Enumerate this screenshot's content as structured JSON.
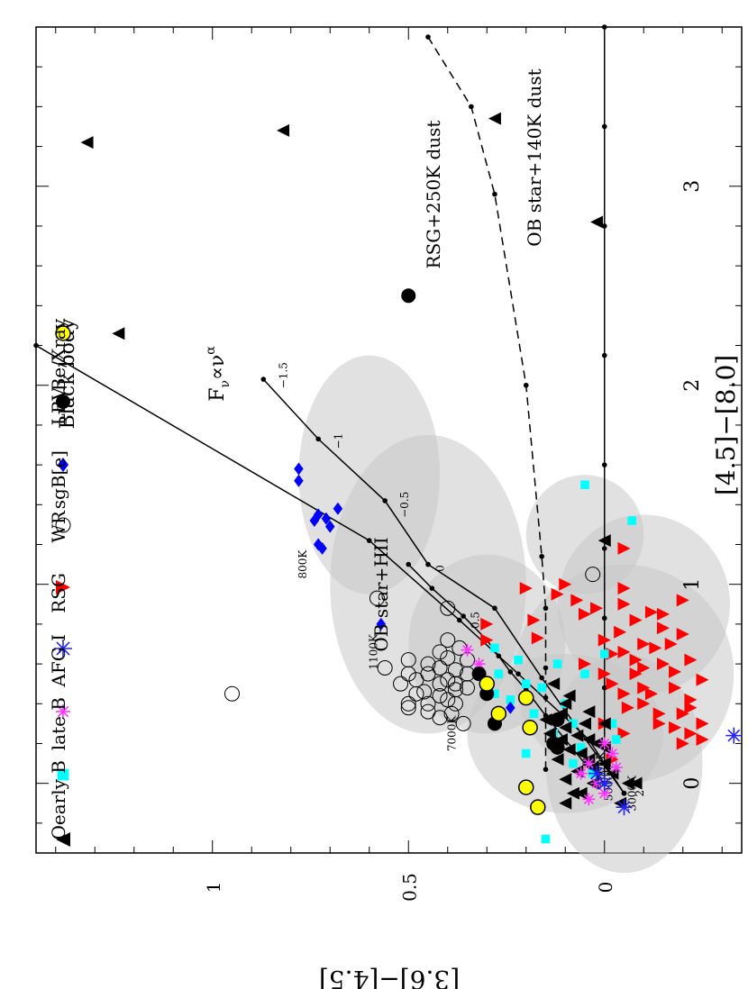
{
  "chart_data": {
    "type": "scatter",
    "orientation": "rotated-90-clockwise",
    "xlabel": "[4.5]−[8.0]",
    "ylabel": "[3.6]−[4.5]",
    "xlim": [
      -0.35,
      3.8
    ],
    "ylim": [
      -0.35,
      1.45
    ],
    "x_ticks": [
      "0",
      "1",
      "2",
      "3"
    ],
    "y_ticks": [
      "0",
      "0.5",
      "1"
    ],
    "grid": false,
    "legend_placement": "bottom-left",
    "colors": {
      "O": "#000000",
      "earlyB": "#00ffff",
      "lateB": "#ff33ff",
      "AFG": "#2222ff",
      "RSG": "#ff0000",
      "sgB": "#0000ff",
      "LBV": "#000000",
      "BeX": "#ffff00",
      "bg": "#c8c8c8"
    },
    "legend": [
      {
        "label": "O",
        "marker": "triangle-up",
        "color": "#000000"
      },
      {
        "label": "early B",
        "marker": "square",
        "color": "#00ffff"
      },
      {
        "label": "late B",
        "marker": "asterisk",
        "color": "#ff33ff"
      },
      {
        "label": "AFG I",
        "marker": "asterisk",
        "color": "#2222ff"
      },
      {
        "label": "RSG",
        "marker": "triangle-down",
        "color": "#ff0000"
      },
      {
        "label": "WR",
        "marker": "circle-open",
        "color": "#000000"
      },
      {
        "label": "sgB[e]",
        "marker": "diamond",
        "color": "#0000ff"
      },
      {
        "label": "LBV",
        "marker": "circle",
        "color": "#000000"
      },
      {
        "label": "Be/Xray",
        "marker": "circle-yellow",
        "color": "#ffff00"
      }
    ],
    "annotations": {
      "blackbody": "Black body",
      "powerlaw_main": "F",
      "powerlaw_sub": "ν",
      "powerlaw_rest": "∝ν",
      "powerlaw_sup": "α",
      "ob_hii": "OB star+HII",
      "rsg_dust": "RSG+250K dust",
      "ob_dust": "OB star+140K dust"
    },
    "lines": {
      "blackbody": {
        "x": [
          -0.05,
          0.22,
          0.55,
          0.82,
          1.22,
          2.2
        ],
        "y": [
          -0.05,
          0.04,
          0.22,
          0.37,
          0.6,
          1.45
        ],
        "labels": [
          {
            "text": "3000K",
            "x": -0.05,
            "y": -0.08
          },
          {
            "text": "5000K",
            "x": 0.0,
            "y": -0.02
          },
          {
            "text": "8000K",
            "x": 0.07,
            "y": 0.0
          },
          {
            "text": "7000K",
            "x": 0.25,
            "y": 0.38
          },
          {
            "text": "1100K",
            "x": 0.66,
            "y": 0.58
          },
          {
            "text": "800K",
            "x": 1.1,
            "y": 0.76
          }
        ]
      },
      "powerlaw": {
        "x": [
          -0.05,
          0.53,
          0.88,
          1.1,
          1.42,
          1.73,
          2.03
        ],
        "y": [
          -0.05,
          0.16,
          0.28,
          0.45,
          0.56,
          0.73,
          0.87
        ],
        "labels": [
          {
            "text": "2",
            "x": -0.05,
            "y": -0.1
          },
          {
            "text": "0.5",
            "x": 0.82,
            "y": 0.32
          },
          {
            "text": "0",
            "x": 1.08,
            "y": 0.41
          },
          {
            "text": "−0.5",
            "x": 1.4,
            "y": 0.5
          },
          {
            "text": "−1",
            "x": 1.72,
            "y": 0.67
          },
          {
            "text": "−1.5",
            "x": 2.05,
            "y": 0.81
          }
        ]
      },
      "ob_hii": {
        "x": [
          0.0,
          0.1,
          0.22,
          0.34,
          0.47,
          0.56,
          0.64,
          0.72,
          0.84,
          0.98,
          1.1
        ],
        "y": [
          0.0,
          0.05,
          0.1,
          0.15,
          0.2,
          0.24,
          0.27,
          0.3,
          0.36,
          0.44,
          0.5
        ]
      },
      "rsg_dust": {
        "x": [
          0.07,
          0.43,
          0.58,
          0.88,
          1.14,
          2.0,
          2.96,
          3.4,
          3.75
        ],
        "y": [
          0.15,
          0.15,
          0.15,
          0.15,
          0.16,
          0.2,
          0.28,
          0.34,
          0.45
        ]
      },
      "ob_dust": {
        "x": [
          0.0,
          0.2,
          0.48,
          0.83,
          1.18,
          1.6,
          2.15,
          2.8,
          3.3,
          3.8
        ],
        "y": [
          0.0,
          0.0,
          0.0,
          0.0,
          0.0,
          0.0,
          0.0,
          0.0,
          0.0,
          0.0
        ]
      }
    },
    "series": {
      "O": [
        [
          3.22,
          1.32
        ],
        [
          3.28,
          0.82
        ],
        [
          3.34,
          0.28
        ],
        [
          2.26,
          1.24
        ],
        [
          2.82,
          0.02
        ],
        [
          1.22,
          0.0
        ],
        [
          -0.05,
          0.08
        ],
        [
          0.0,
          0.03
        ],
        [
          0.1,
          0.0
        ],
        [
          0.2,
          0.02
        ],
        [
          0.3,
          0.05
        ],
        [
          0.35,
          0.11
        ],
        [
          0.25,
          0.14
        ],
        [
          0.22,
          0.11
        ],
        [
          0.15,
          0.06
        ],
        [
          0.08,
          0.03
        ],
        [
          0.05,
          -0.02
        ],
        [
          0.0,
          -0.06
        ],
        [
          -0.1,
          0.1
        ],
        [
          0.4,
          0.1
        ],
        [
          0.3,
          0.0
        ],
        [
          0.12,
          0.12
        ],
        [
          -0.05,
          0.06
        ],
        [
          0.02,
          0.1
        ],
        [
          0.06,
          0.07
        ],
        [
          0.18,
          0.0
        ],
        [
          0.24,
          0.07
        ],
        [
          0.32,
          0.15
        ],
        [
          0.44,
          0.09
        ],
        [
          0.5,
          0.13
        ],
        [
          0.17,
          0.09
        ],
        [
          0.36,
          0.04
        ],
        [
          0.28,
          0.1
        ],
        [
          -0.1,
          -0.04
        ],
        [
          0.0,
          -0.08
        ],
        [
          0.12,
          0.04
        ],
        [
          0.22,
          0.04
        ]
      ],
      "earlyB": [
        [
          1.5,
          0.05
        ],
        [
          1.32,
          -0.07
        ],
        [
          0.3,
          -0.02
        ],
        [
          0.4,
          0.1
        ],
        [
          0.5,
          0.2
        ],
        [
          0.55,
          0.27
        ],
        [
          0.6,
          0.12
        ],
        [
          0.45,
          0.28
        ],
        [
          0.35,
          0.18
        ],
        [
          0.25,
          0.13
        ],
        [
          0.15,
          0.2
        ],
        [
          0.1,
          0.08
        ],
        [
          0.55,
          0.05
        ],
        [
          0.68,
          0.28
        ],
        [
          0.62,
          0.22
        ],
        [
          -0.28,
          0.15
        ],
        [
          0.18,
          0.06
        ],
        [
          0.42,
          0.24
        ],
        [
          0.3,
          0.08
        ],
        [
          0.22,
          -0.03
        ],
        [
          0.48,
          0.16
        ],
        [
          0.05,
          0.03
        ],
        [
          0.65,
          0.0
        ],
        [
          0.55,
          0.32
        ]
      ],
      "lateB": [
        [
          0.67,
          0.35
        ],
        [
          0.6,
          0.32
        ],
        [
          0.1,
          0.04
        ],
        [
          0.0,
          0.02
        ],
        [
          0.15,
          -0.02
        ],
        [
          0.05,
          0.06
        ],
        [
          0.2,
          0.0
        ],
        [
          -0.05,
          0.0
        ],
        [
          0.08,
          -0.03
        ],
        [
          -0.08,
          0.04
        ]
      ],
      "AFG": [
        [
          0.24,
          -0.33
        ],
        [
          0.0,
          0.0
        ],
        [
          0.05,
          0.02
        ],
        [
          -0.12,
          -0.05
        ]
      ],
      "RSG": [
        [
          1.18,
          -0.05
        ],
        [
          0.98,
          0.2
        ],
        [
          0.82,
          0.18
        ],
        [
          0.8,
          0.3
        ],
        [
          0.73,
          0.17
        ],
        [
          0.9,
          -0.05
        ],
        [
          0.86,
          -0.12
        ],
        [
          0.92,
          -0.2
        ],
        [
          0.76,
          -0.04
        ],
        [
          0.68,
          -0.13
        ],
        [
          0.6,
          -0.15
        ],
        [
          0.55,
          -0.08
        ],
        [
          0.48,
          -0.18
        ],
        [
          0.4,
          -0.1
        ],
        [
          0.35,
          -0.2
        ],
        [
          0.3,
          -0.14
        ],
        [
          0.22,
          -0.25
        ],
        [
          0.25,
          -0.05
        ],
        [
          0.45,
          -0.05
        ],
        [
          0.65,
          -0.02
        ],
        [
          0.75,
          -0.2
        ],
        [
          0.82,
          -0.08
        ],
        [
          0.52,
          -0.25
        ],
        [
          0.38,
          -0.22
        ],
        [
          0.3,
          -0.25
        ],
        [
          0.7,
          -0.1
        ],
        [
          0.62,
          -0.22
        ],
        [
          0.56,
          -0.18
        ],
        [
          0.45,
          -0.12
        ],
        [
          0.42,
          -0.22
        ],
        [
          0.35,
          -0.14
        ],
        [
          0.28,
          -0.18
        ],
        [
          0.2,
          -0.2
        ],
        [
          0.92,
          0.07
        ],
        [
          0.85,
          0.05
        ],
        [
          0.6,
          0.05
        ],
        [
          0.98,
          -0.05
        ],
        [
          1.0,
          0.1
        ],
        [
          0.88,
          0.02
        ],
        [
          0.72,
          0.0
        ],
        [
          0.5,
          -0.02
        ],
        [
          0.66,
          -0.05
        ],
        [
          0.55,
          0.0
        ],
        [
          0.78,
          -0.15
        ],
        [
          0.62,
          -0.08
        ],
        [
          0.85,
          -0.15
        ],
        [
          0.7,
          -0.17
        ],
        [
          0.58,
          -0.1
        ],
        [
          0.48,
          -0.1
        ],
        [
          0.38,
          -0.06
        ],
        [
          0.25,
          -0.22
        ],
        [
          0.95,
          0.12
        ],
        [
          0.72,
          0.3
        ],
        [
          0.12,
          -0.02
        ],
        [
          0.3,
          0.0
        ]
      ],
      "WR": [
        [
          0.93,
          0.58
        ],
        [
          0.45,
          0.95
        ],
        [
          1.05,
          0.03
        ],
        [
          0.88,
          0.4
        ],
        [
          0.72,
          0.4
        ],
        [
          0.68,
          0.37
        ],
        [
          0.62,
          0.5
        ],
        [
          0.58,
          0.56
        ],
        [
          0.5,
          0.52
        ],
        [
          0.45,
          0.48
        ],
        [
          0.4,
          0.45
        ],
        [
          0.38,
          0.5
        ],
        [
          0.55,
          0.45
        ],
        [
          0.52,
          0.4
        ],
        [
          0.48,
          0.35
        ],
        [
          0.6,
          0.45
        ],
        [
          0.42,
          0.4
        ],
        [
          0.36,
          0.45
        ],
        [
          0.5,
          0.42
        ],
        [
          0.35,
          0.39
        ],
        [
          0.3,
          0.36
        ],
        [
          0.55,
          0.35
        ],
        [
          0.47,
          0.38
        ],
        [
          0.4,
          0.38
        ],
        [
          0.33,
          0.42
        ],
        [
          0.57,
          0.38
        ],
        [
          0.63,
          0.4
        ],
        [
          0.66,
          0.42
        ],
        [
          0.52,
          0.48
        ],
        [
          0.44,
          0.42
        ],
        [
          0.5,
          0.38
        ],
        [
          0.4,
          0.5
        ],
        [
          0.55,
          0.5
        ],
        [
          0.46,
          0.46
        ],
        [
          0.58,
          0.42
        ],
        [
          0.62,
          0.35
        ]
      ],
      "sgB": [
        [
          1.58,
          0.78
        ],
        [
          1.52,
          0.78
        ],
        [
          1.35,
          0.73
        ],
        [
          1.33,
          0.71
        ],
        [
          1.29,
          0.7
        ],
        [
          1.38,
          0.68
        ],
        [
          1.32,
          0.74
        ],
        [
          1.2,
          0.73
        ],
        [
          1.18,
          0.72
        ],
        [
          0.8,
          0.57
        ],
        [
          0.38,
          0.24
        ]
      ],
      "LBV": [
        [
          2.45,
          0.5
        ],
        [
          0.55,
          0.32
        ],
        [
          0.45,
          0.3
        ],
        [
          0.32,
          0.12
        ],
        [
          0.18,
          0.12
        ],
        [
          0.3,
          0.28
        ],
        [
          0.2,
          0.13
        ]
      ],
      "BeX": [
        [
          0.43,
          0.2
        ],
        [
          0.28,
          0.19
        ],
        [
          0.35,
          0.27
        ],
        [
          -0.12,
          0.17
        ],
        [
          -0.02,
          0.2
        ],
        [
          0.5,
          0.3
        ]
      ]
    }
  }
}
